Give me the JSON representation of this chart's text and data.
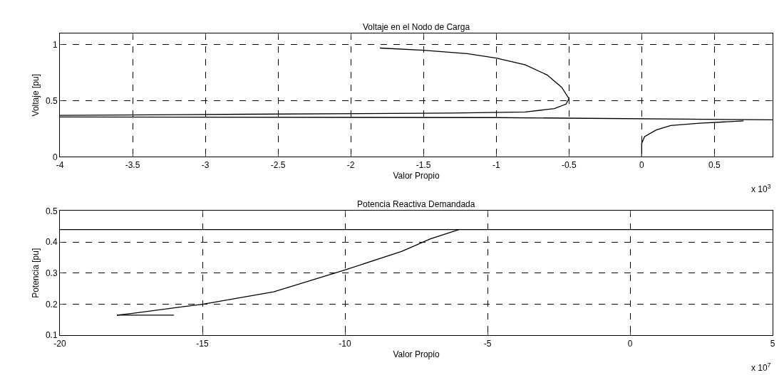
{
  "chart_data": [
    {
      "type": "line",
      "title": "Voltaje en el Nodo de Carga",
      "xlabel": "Valor Propio",
      "ylabel": "Voltaje [pu]",
      "annotations": [
        "x 10$^{3}$"
      ],
      "series": [
        {
          "color": "#000000",
          "x": [
            -1.8,
            -1.5,
            -1.2,
            -1.0,
            -0.8,
            -0.65,
            -0.55,
            -0.5,
            -0.52,
            -0.6,
            -0.8,
            -1.3,
            -2.7,
            -4.0
          ],
          "values": [
            0.97,
            0.95,
            0.92,
            0.88,
            0.82,
            0.73,
            0.62,
            0.52,
            0.47,
            0.43,
            0.4,
            0.39,
            0.38,
            0.37
          ]
        },
        {
          "color": "#000000",
          "x": [
            -4.0,
            -1.0,
            0.9
          ],
          "values": [
            0.355,
            0.35,
            0.33
          ]
        },
        {
          "color": "#000000",
          "x": [
            0.0,
            0.0,
            0.02,
            0.1,
            0.2,
            0.4,
            0.7
          ],
          "values": [
            0.0,
            0.12,
            0.18,
            0.24,
            0.28,
            0.3,
            0.32
          ]
        }
      ],
      "xlim": [
        -4,
        0.9
      ],
      "xticks": [
        -4,
        -3.5,
        -3,
        -2.5,
        -2,
        -1.5,
        -1,
        -0.5,
        0,
        0.5
      ],
      "ylim": [
        0,
        1.1
      ],
      "yticks": [
        0,
        0.5,
        1
      ],
      "grid": true,
      "line_style": "solid"
    },
    {
      "type": "line",
      "title": "Potencia Reactiva Demandada",
      "xlabel": "Valor Propio",
      "ylabel": "Potencia [pu]",
      "annotations": [
        "x 10$^{7}$"
      ],
      "series": [
        {
          "color": "#000000",
          "x": [
            -18.0,
            -17.5,
            -15.0,
            -12.5,
            -10.0,
            -8.0,
            -7.0,
            -6.0
          ],
          "values": [
            0.165,
            0.17,
            0.2,
            0.24,
            0.31,
            0.37,
            0.41,
            0.44
          ]
        },
        {
          "color": "#000000",
          "x": [
            -18.0,
            -16.0
          ],
          "values": [
            0.165,
            0.165
          ]
        },
        {
          "color": "#000000",
          "x": [
            -20,
            5
          ],
          "values": [
            0.44,
            0.44
          ]
        }
      ],
      "xlim": [
        -20,
        5
      ],
      "xticks": [
        -20,
        -15,
        -10,
        -5,
        0,
        5
      ],
      "ylim": [
        0.1,
        0.5
      ],
      "yticks": [
        0.1,
        0.2,
        0.3,
        0.4,
        0.5
      ],
      "grid": true,
      "line_style": "solid"
    }
  ]
}
